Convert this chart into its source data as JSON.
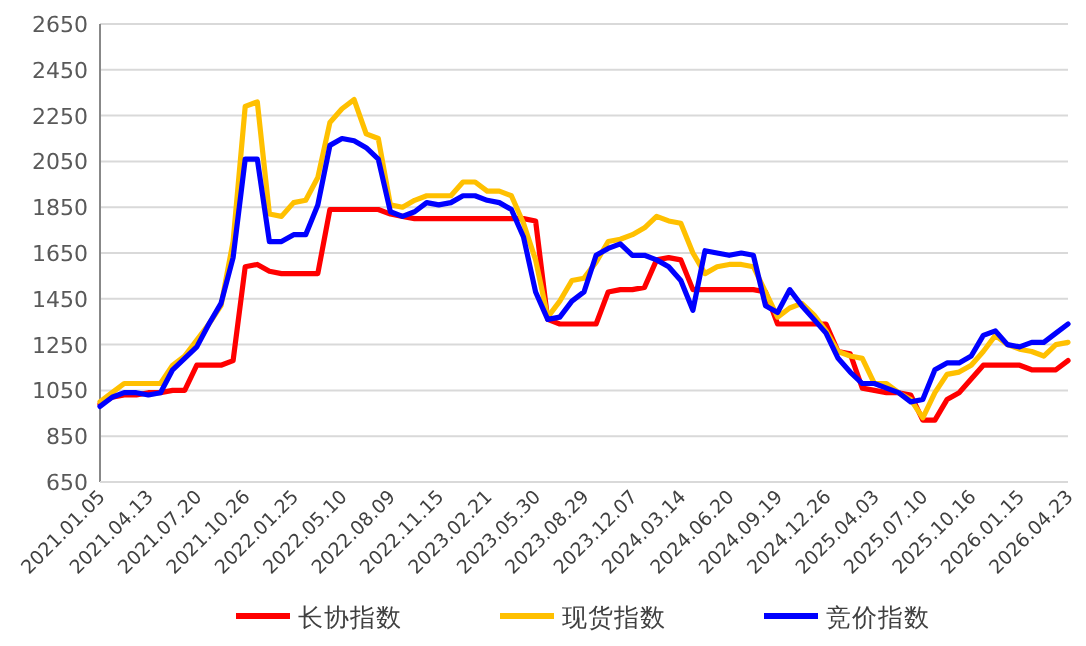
{
  "chart_data": {
    "type": "line",
    "categories": [
      "2021.01.05",
      null,
      null,
      null,
      "2021.04.13",
      null,
      null,
      null,
      "2021.07.20",
      null,
      null,
      null,
      "2021.10.26",
      null,
      null,
      null,
      "2022.01.25",
      null,
      null,
      null,
      "2022.05.10",
      null,
      null,
      null,
      "2022.08.09",
      null,
      null,
      null,
      "2022.11.15",
      null,
      null,
      null,
      "2023.02.21",
      null,
      null,
      null,
      "2023.05.30",
      null,
      null,
      null,
      "2023.08.29",
      null,
      null,
      null,
      "2023.12.07",
      null,
      null,
      null,
      "2024.03.14",
      null,
      null,
      null,
      "2024.06.20",
      null,
      null,
      null,
      "2024.09.19",
      null,
      null,
      null,
      "2024.12.26",
      null,
      null,
      null,
      "2025.04.03",
      null,
      null,
      null,
      "2025.07.10",
      null,
      null,
      null,
      "2025.10.16",
      null,
      null,
      null,
      "2026.01.15",
      null,
      null,
      null,
      "2026.04.23"
    ],
    "series": [
      {
        "name": "长协指数",
        "color": "#ff0000",
        "values": [
          990,
          1020,
          1030,
          1030,
          1040,
          1040,
          1050,
          1050,
          1160,
          1160,
          1160,
          1180,
          1590,
          1600,
          1570,
          1560,
          1560,
          1560,
          1560,
          1840,
          1840,
          1840,
          1840,
          1840,
          1820,
          1810,
          1800,
          1800,
          1800,
          1800,
          1800,
          1800,
          1800,
          1800,
          1800,
          1800,
          1790,
          1360,
          1340,
          1340,
          1340,
          1340,
          1480,
          1490,
          1490,
          1500,
          1620,
          1630,
          1620,
          1490,
          1490,
          1490,
          1490,
          1490,
          1490,
          1480,
          1340,
          1340,
          1340,
          1340,
          1340,
          1220,
          1210,
          1060,
          1050,
          1040,
          1040,
          1030,
          920,
          920,
          1010,
          1040,
          1100,
          1160,
          1160,
          1160,
          1160,
          1140,
          1140,
          1140,
          1180
        ]
      },
      {
        "name": "现货指数",
        "color": "#ffc000",
        "values": [
          1000,
          1040,
          1080,
          1080,
          1080,
          1080,
          1160,
          1200,
          1270,
          1340,
          1420,
          1700,
          2290,
          2310,
          1820,
          1810,
          1870,
          1880,
          1980,
          2220,
          2280,
          2320,
          2170,
          2150,
          1860,
          1850,
          1880,
          1900,
          1900,
          1900,
          1960,
          1960,
          1920,
          1920,
          1900,
          1780,
          1620,
          1370,
          1440,
          1530,
          1540,
          1610,
          1700,
          1710,
          1730,
          1760,
          1810,
          1790,
          1780,
          1650,
          1560,
          1590,
          1600,
          1600,
          1590,
          1480,
          1370,
          1410,
          1430,
          1380,
          1310,
          1220,
          1200,
          1190,
          1080,
          1080,
          1040,
          1010,
          930,
          1040,
          1120,
          1130,
          1160,
          1220,
          1290,
          1250,
          1230,
          1220,
          1200,
          1250,
          1260
        ]
      },
      {
        "name": "竞价指数",
        "color": "#0000ff",
        "values": [
          980,
          1020,
          1040,
          1040,
          1030,
          1040,
          1140,
          1190,
          1240,
          1340,
          1430,
          1630,
          2060,
          2060,
          1700,
          1700,
          1730,
          1730,
          1860,
          2120,
          2150,
          2140,
          2110,
          2060,
          1830,
          1810,
          1830,
          1870,
          1860,
          1870,
          1900,
          1900,
          1880,
          1870,
          1840,
          1720,
          1480,
          1360,
          1370,
          1440,
          1480,
          1640,
          1670,
          1690,
          1640,
          1640,
          1620,
          1590,
          1530,
          1400,
          1660,
          1650,
          1640,
          1650,
          1640,
          1420,
          1390,
          1490,
          1420,
          1360,
          1300,
          1190,
          1130,
          1080,
          1080,
          1060,
          1040,
          1000,
          1010,
          1140,
          1170,
          1170,
          1200,
          1290,
          1310,
          1250,
          1240,
          1260,
          1260,
          1300,
          1340
        ]
      }
    ],
    "ylim": [
      650,
      2650
    ],
    "yticks": [
      650,
      850,
      1050,
      1250,
      1450,
      1650,
      1850,
      2050,
      2250,
      2450,
      2650
    ],
    "grid": "y",
    "legend": "bottom"
  }
}
